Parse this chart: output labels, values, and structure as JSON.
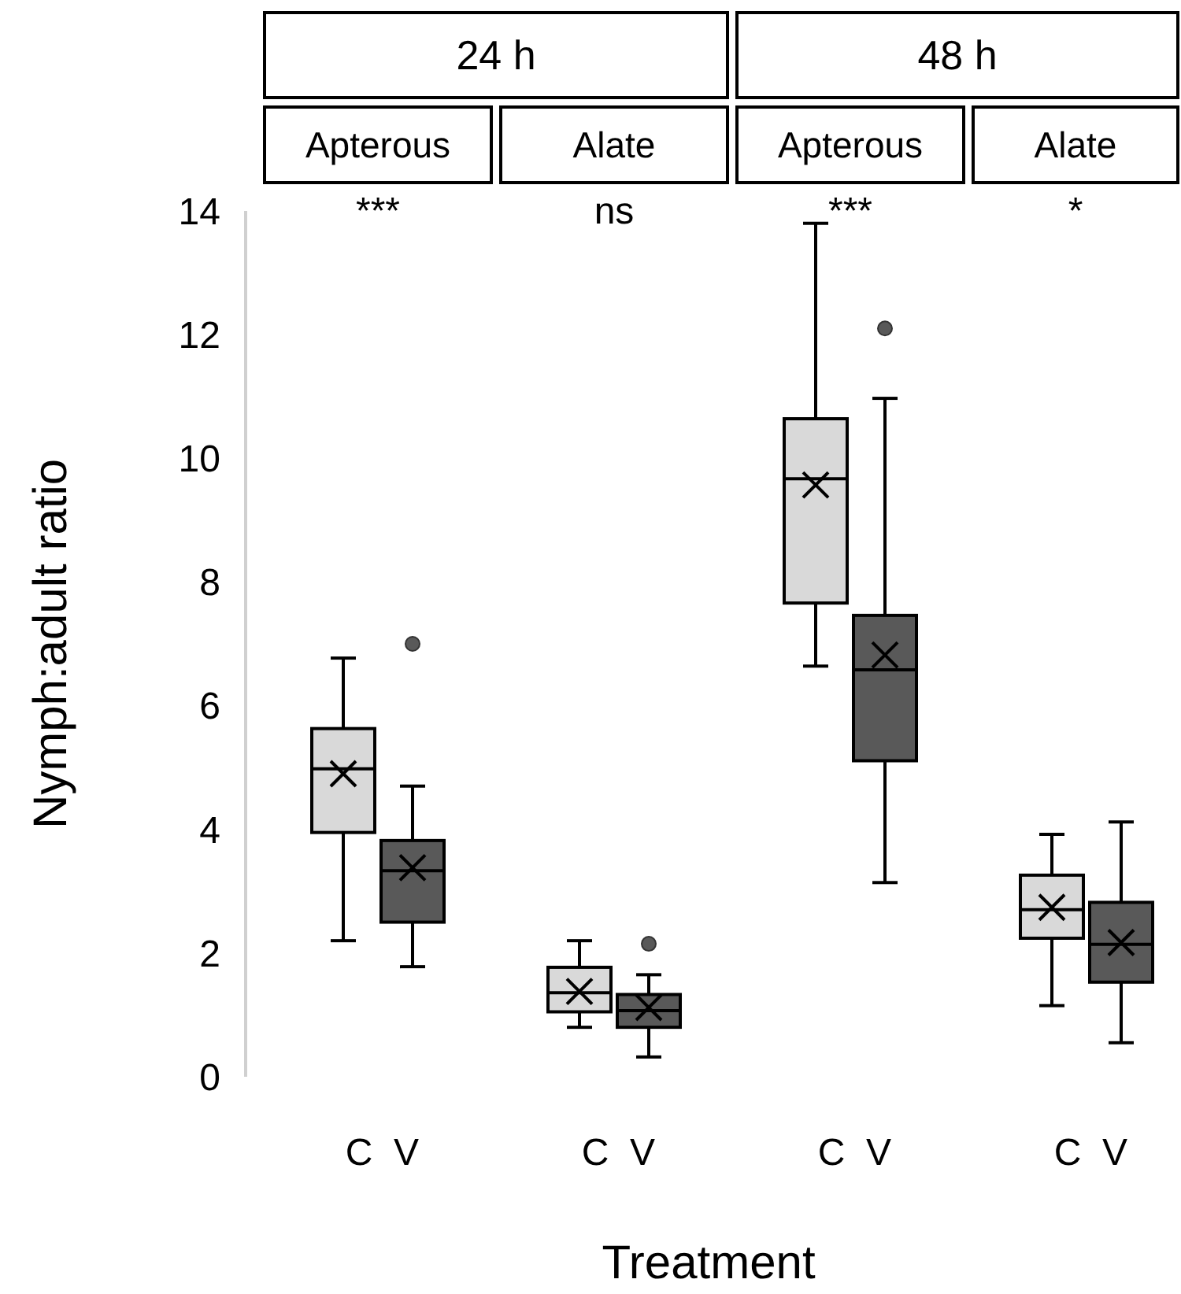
{
  "chart_data": {
    "type": "box",
    "ylabel": "Nymph:adult ratio",
    "xlabel": "Treatment",
    "categories": [
      "C",
      "V",
      "C",
      "V",
      "C",
      "V",
      "C",
      "V"
    ],
    "colors": [
      "#d9d9d9",
      "#595959",
      "#d9d9d9",
      "#595959",
      "#d9d9d9",
      "#595959",
      "#d9d9d9",
      "#595959"
    ],
    "boxes": [
      {
        "low": 2.2,
        "q1": 3.95,
        "median": 4.98,
        "q3": 5.63,
        "high": 6.77,
        "mean": 4.9
      },
      {
        "low": 1.78,
        "q1": 2.5,
        "median": 3.33,
        "q3": 3.82,
        "high": 4.7,
        "mean": 3.38,
        "outliers": [
          7.0
        ]
      },
      {
        "low": 0.8,
        "q1": 1.05,
        "median": 1.36,
        "q3": 1.77,
        "high": 2.2,
        "mean": 1.38
      },
      {
        "low": 0.32,
        "q1": 0.8,
        "median": 1.07,
        "q3": 1.33,
        "high": 1.65,
        "mean": 1.12,
        "outliers": [
          2.15
        ]
      },
      {
        "low": 6.64,
        "q1": 7.66,
        "median": 9.67,
        "q3": 10.64,
        "high": 13.8,
        "mean": 9.57
      },
      {
        "low": 3.14,
        "q1": 5.11,
        "median": 6.58,
        "q3": 7.46,
        "high": 10.97,
        "mean": 6.82,
        "outliers": [
          12.1
        ]
      },
      {
        "low": 1.15,
        "q1": 2.24,
        "median": 2.7,
        "q3": 3.26,
        "high": 3.92,
        "mean": 2.74
      },
      {
        "low": 0.55,
        "q1": 1.53,
        "median": 2.14,
        "q3": 2.82,
        "high": 4.12,
        "mean": 2.17
      }
    ],
    "annotations": [
      "24 h",
      "48 h",
      "Apterous",
      "Alate",
      "Apterous",
      "Alate",
      "***",
      "ns",
      "***",
      "*"
    ],
    "ylim": [
      0,
      14
    ],
    "yticks": [
      0,
      2,
      4,
      6,
      8,
      10,
      12,
      14
    ]
  }
}
